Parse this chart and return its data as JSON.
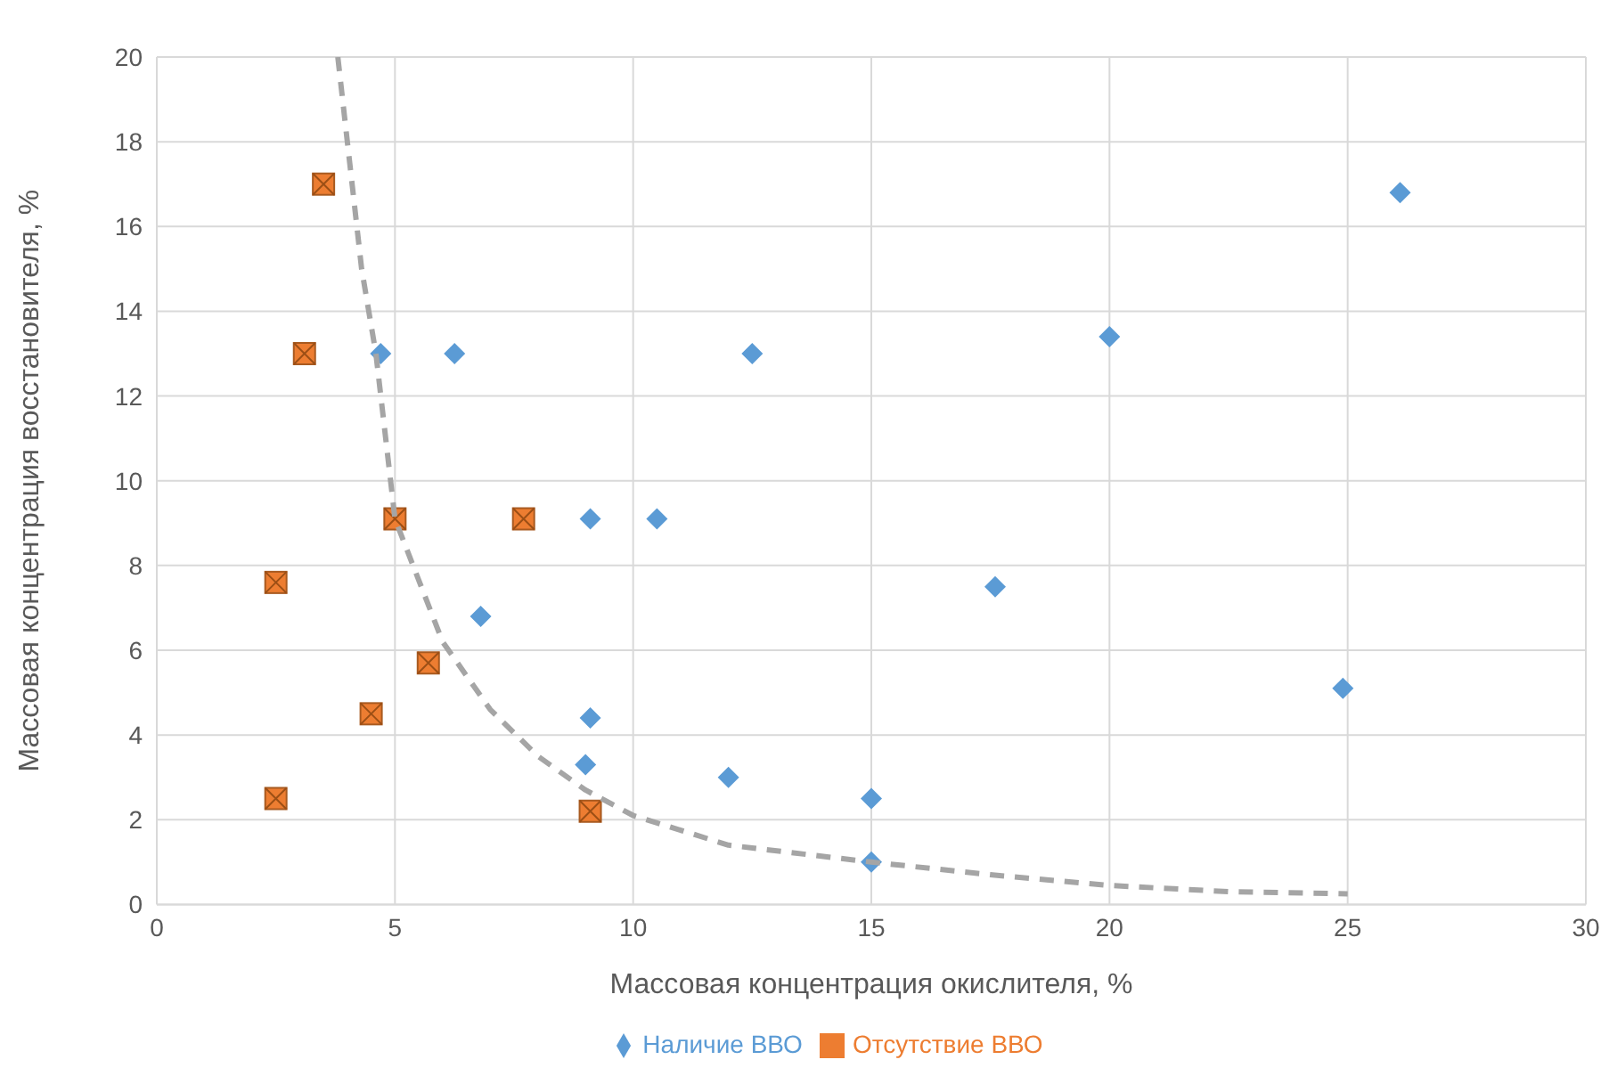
{
  "chart_data": {
    "type": "scatter",
    "xlabel": "Массовая концентрация окислителя, %",
    "ylabel": "Массовая концентрация восстановителя, %",
    "xlim": [
      0,
      30
    ],
    "xticks": [
      0,
      5,
      10,
      15,
      20,
      25,
      30
    ],
    "ylim": [
      0,
      20
    ],
    "yticks": [
      0,
      2,
      4,
      6,
      8,
      10,
      12,
      14,
      16,
      18,
      20
    ],
    "grid": true,
    "legend": "bottom",
    "series": [
      {
        "name": "Наличие ВВО",
        "color": "#5b9bd5",
        "marker": "diamond",
        "x": [
          4.7,
          6.25,
          12.5,
          20,
          26.1,
          9.1,
          10.5,
          17.6,
          6.8,
          24.9,
          9.1,
          9,
          12,
          15,
          15
        ],
        "values": [
          13,
          13,
          13,
          13.4,
          16.8,
          9.1,
          9.1,
          7.5,
          6.8,
          5.1,
          4.4,
          3.3,
          3,
          2.5,
          1
        ]
      },
      {
        "name": "Отсутствие ВВО",
        "color": "#ed7d31",
        "marker": "square",
        "x": [
          3.5,
          3.1,
          5,
          7.7,
          2.5,
          5.7,
          4.5,
          2.5,
          9.1
        ],
        "values": [
          17,
          13,
          9.1,
          9.1,
          7.6,
          5.7,
          4.5,
          2.5,
          2.2
        ]
      },
      {
        "type": "line",
        "color": "#a5a5a5",
        "line_style": "dashed",
        "marker": "none",
        "x": [
          3.8,
          4.3,
          4.6,
          5,
          6,
          7,
          8,
          9,
          10,
          12,
          15,
          17.5,
          20,
          22.5,
          25
        ],
        "values": [
          20,
          15,
          13,
          9.1,
          6.2,
          4.6,
          3.5,
          2.7,
          2.1,
          1.4,
          1,
          0.7,
          0.45,
          0.3,
          0.25
        ]
      }
    ]
  }
}
